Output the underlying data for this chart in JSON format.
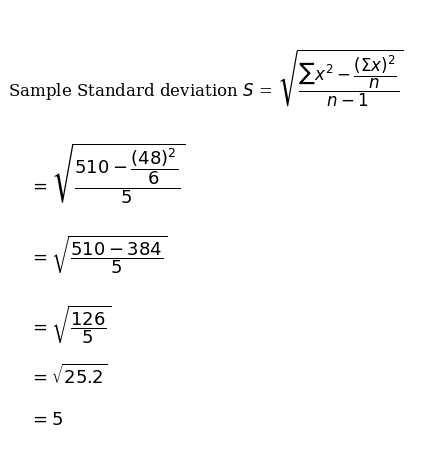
{
  "background_color": "#ffffff",
  "text_color": "#000000",
  "figsize": [
    4.21,
    4.68
  ],
  "dpi": 100,
  "line1_label": "Sample Standard deviation $S$ =",
  "line1_formula": "$\\sqrt{\\dfrac{\\sum x^2 - \\dfrac{(\\Sigma x)^2}{n}}{n - 1}}$",
  "line2": "$= \\sqrt{\\dfrac{510 - \\dfrac{(48)^2}{6}}{5}}$",
  "line3": "$= \\sqrt{\\dfrac{510 - 384}{5}}$",
  "line4": "$= \\sqrt{\\dfrac{126}{5}}$",
  "line5": "$= \\sqrt{25.2}$",
  "line6": "$= 5$",
  "font_size_main": 12,
  "font_size_formula": 13
}
